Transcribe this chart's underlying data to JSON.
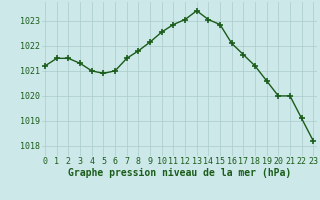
{
  "x": [
    0,
    1,
    2,
    3,
    4,
    5,
    6,
    7,
    8,
    9,
    10,
    11,
    12,
    13,
    14,
    15,
    16,
    17,
    18,
    19,
    20,
    21,
    22,
    23
  ],
  "y": [
    1021.2,
    1021.5,
    1021.5,
    1021.3,
    1021.0,
    1020.9,
    1021.0,
    1021.5,
    1021.8,
    1022.15,
    1022.55,
    1022.85,
    1023.05,
    1023.4,
    1023.05,
    1022.85,
    1022.1,
    1021.65,
    1021.2,
    1020.6,
    1020.0,
    1020.0,
    1019.1,
    1018.2
  ],
  "line_color": "#1a5c1a",
  "marker": "+",
  "markersize": 4,
  "markeredgewidth": 1.2,
  "linewidth": 1.0,
  "bg_color": "#cce8e8",
  "grid_color": "#aacccc",
  "xlabel": "Graphe pression niveau de la mer (hPa)",
  "xlabel_fontsize": 7,
  "xlabel_color": "#1a5c1a",
  "tick_color": "#1a5c1a",
  "tick_fontsize": 6,
  "yticks": [
    1018,
    1019,
    1020,
    1021,
    1022,
    1023
  ],
  "xticks": [
    0,
    1,
    2,
    3,
    4,
    5,
    6,
    7,
    8,
    9,
    10,
    11,
    12,
    13,
    14,
    15,
    16,
    17,
    18,
    19,
    20,
    21,
    22,
    23
  ],
  "xlim": [
    -0.3,
    23.3
  ],
  "ylim": [
    1017.6,
    1023.75
  ]
}
